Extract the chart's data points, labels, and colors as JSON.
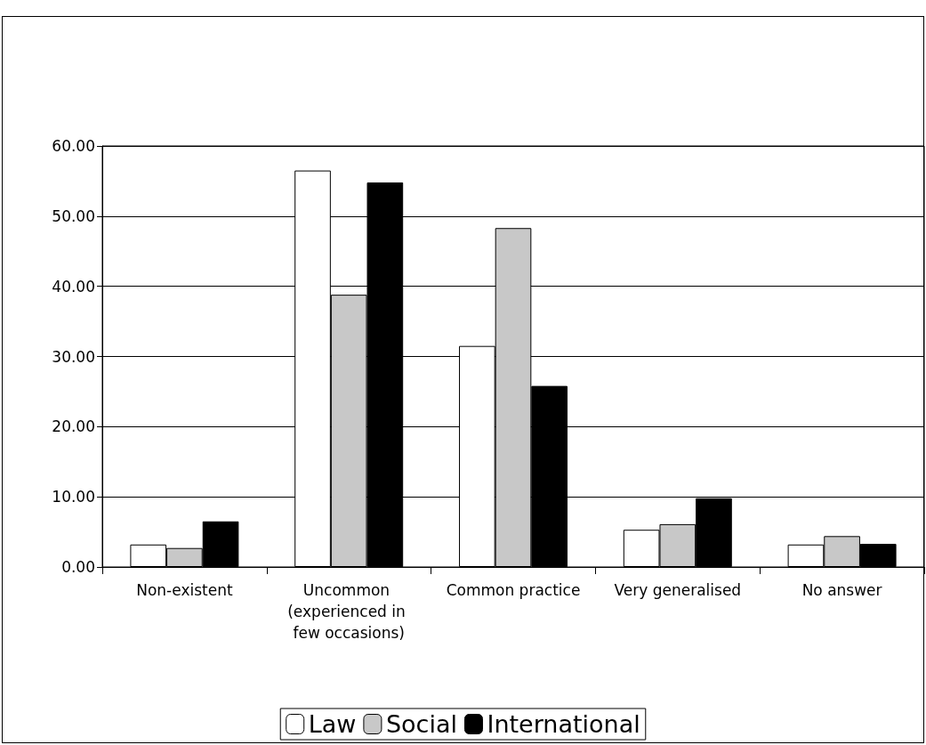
{
  "chart_data": {
    "type": "bar",
    "categories": [
      "Non-existent",
      "Uncommon (experienced in few occasions)",
      "Common practice",
      "Very generalised",
      "No answer"
    ],
    "series": [
      {
        "name": "Law",
        "color": "#ffffff",
        "values": [
          3.2,
          56.5,
          31.5,
          5.3,
          3.2
        ]
      },
      {
        "name": "Social",
        "color": "#c8c8c8",
        "values": [
          2.7,
          38.8,
          48.3,
          6.1,
          4.4
        ]
      },
      {
        "name": "International",
        "color": "#000000",
        "values": [
          6.5,
          54.8,
          25.8,
          9.8,
          3.3
        ]
      }
    ],
    "ylim": [
      0,
      60
    ],
    "yticks": [
      {
        "value": 0,
        "label": "0.00"
      },
      {
        "value": 10,
        "label": "10.00"
      },
      {
        "value": 20,
        "label": "20.00"
      },
      {
        "value": 30,
        "label": "30.00"
      },
      {
        "value": 40,
        "label": "40.00"
      },
      {
        "value": 50,
        "label": "50.00"
      },
      {
        "value": 60,
        "label": "60.00"
      }
    ],
    "grid": "y",
    "legend": "bottom"
  }
}
